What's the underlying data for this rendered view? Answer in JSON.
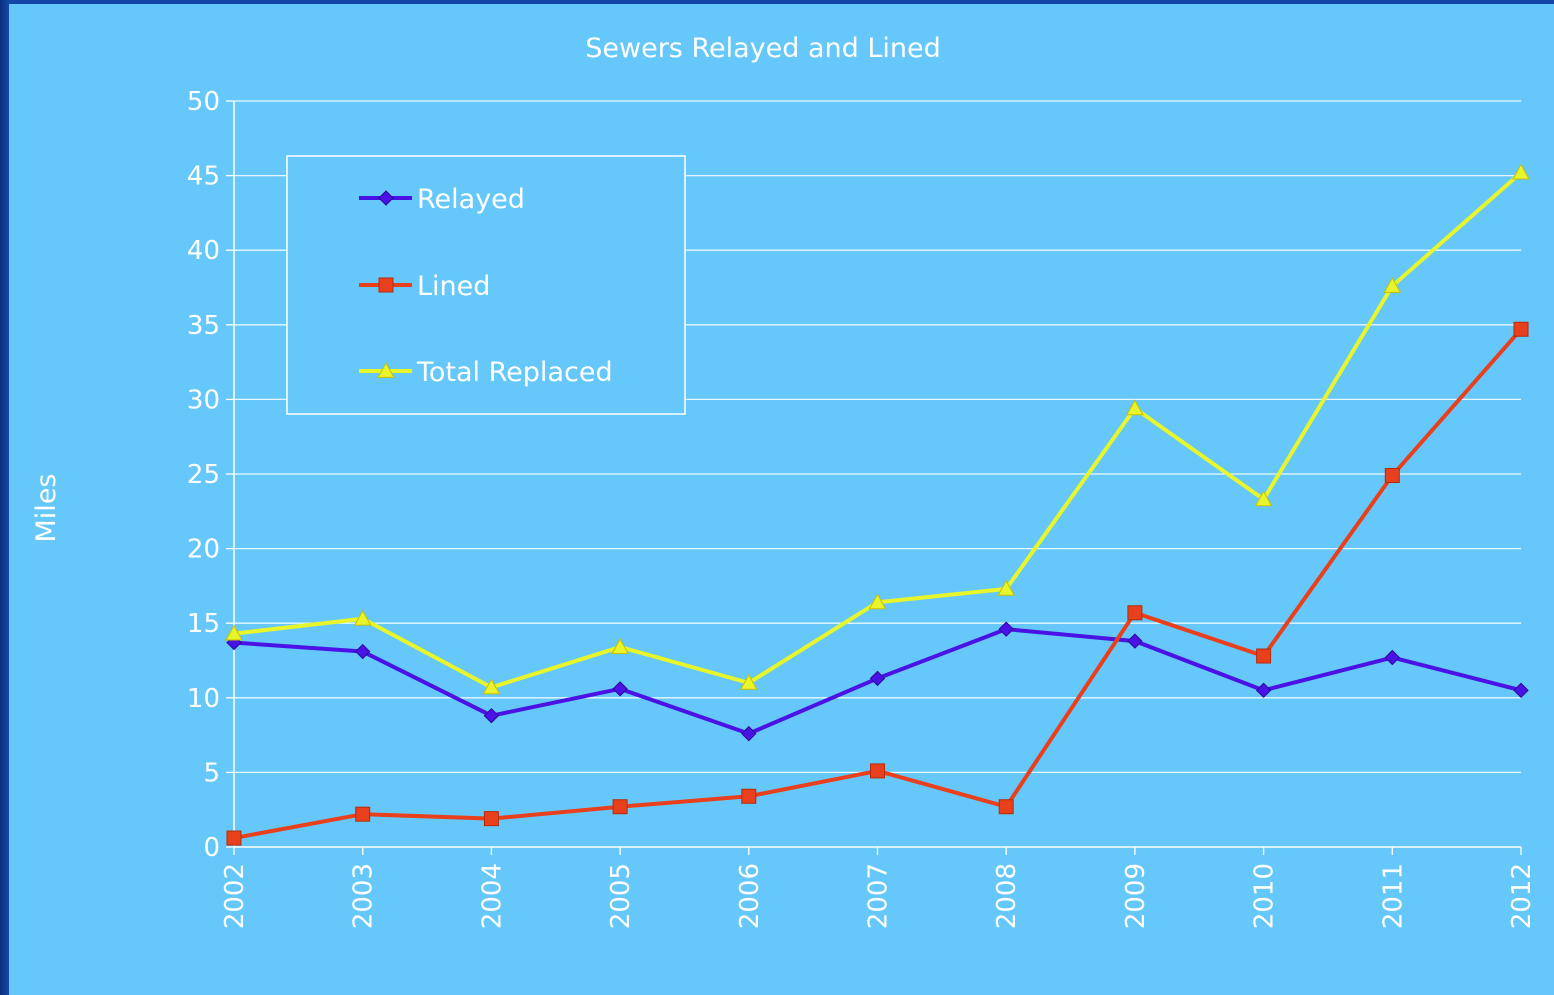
{
  "chart_data": {
    "type": "line",
    "title": "Sewers Relayed and Lined",
    "ylabel": "Miles",
    "xlabel": "",
    "ylim": [
      0,
      50
    ],
    "yticks": [
      0,
      5,
      10,
      15,
      20,
      25,
      30,
      35,
      40,
      45,
      50
    ],
    "grid": true,
    "legend_position": "top-left",
    "categories": [
      "2002",
      "2003",
      "2004",
      "2005",
      "2006",
      "2007",
      "2008",
      "2009",
      "2010",
      "2011",
      "2012"
    ],
    "series": [
      {
        "name": "Relayed",
        "color": "#4b12e6",
        "marker": "diamond",
        "values": [
          13.7,
          13.1,
          8.8,
          10.6,
          7.6,
          11.3,
          14.6,
          13.8,
          10.5,
          12.7,
          10.5
        ]
      },
      {
        "name": "Lined",
        "color": "#e8401c",
        "marker": "square",
        "values": [
          0.6,
          2.2,
          1.9,
          2.7,
          3.4,
          5.1,
          2.7,
          15.7,
          12.8,
          24.9,
          34.7
        ]
      },
      {
        "name": "Total Replaced",
        "color": "#e7f52a",
        "marker": "triangle",
        "values": [
          14.3,
          15.3,
          10.7,
          13.4,
          11.0,
          16.4,
          17.3,
          29.4,
          23.3,
          37.6,
          45.2
        ]
      }
    ]
  }
}
